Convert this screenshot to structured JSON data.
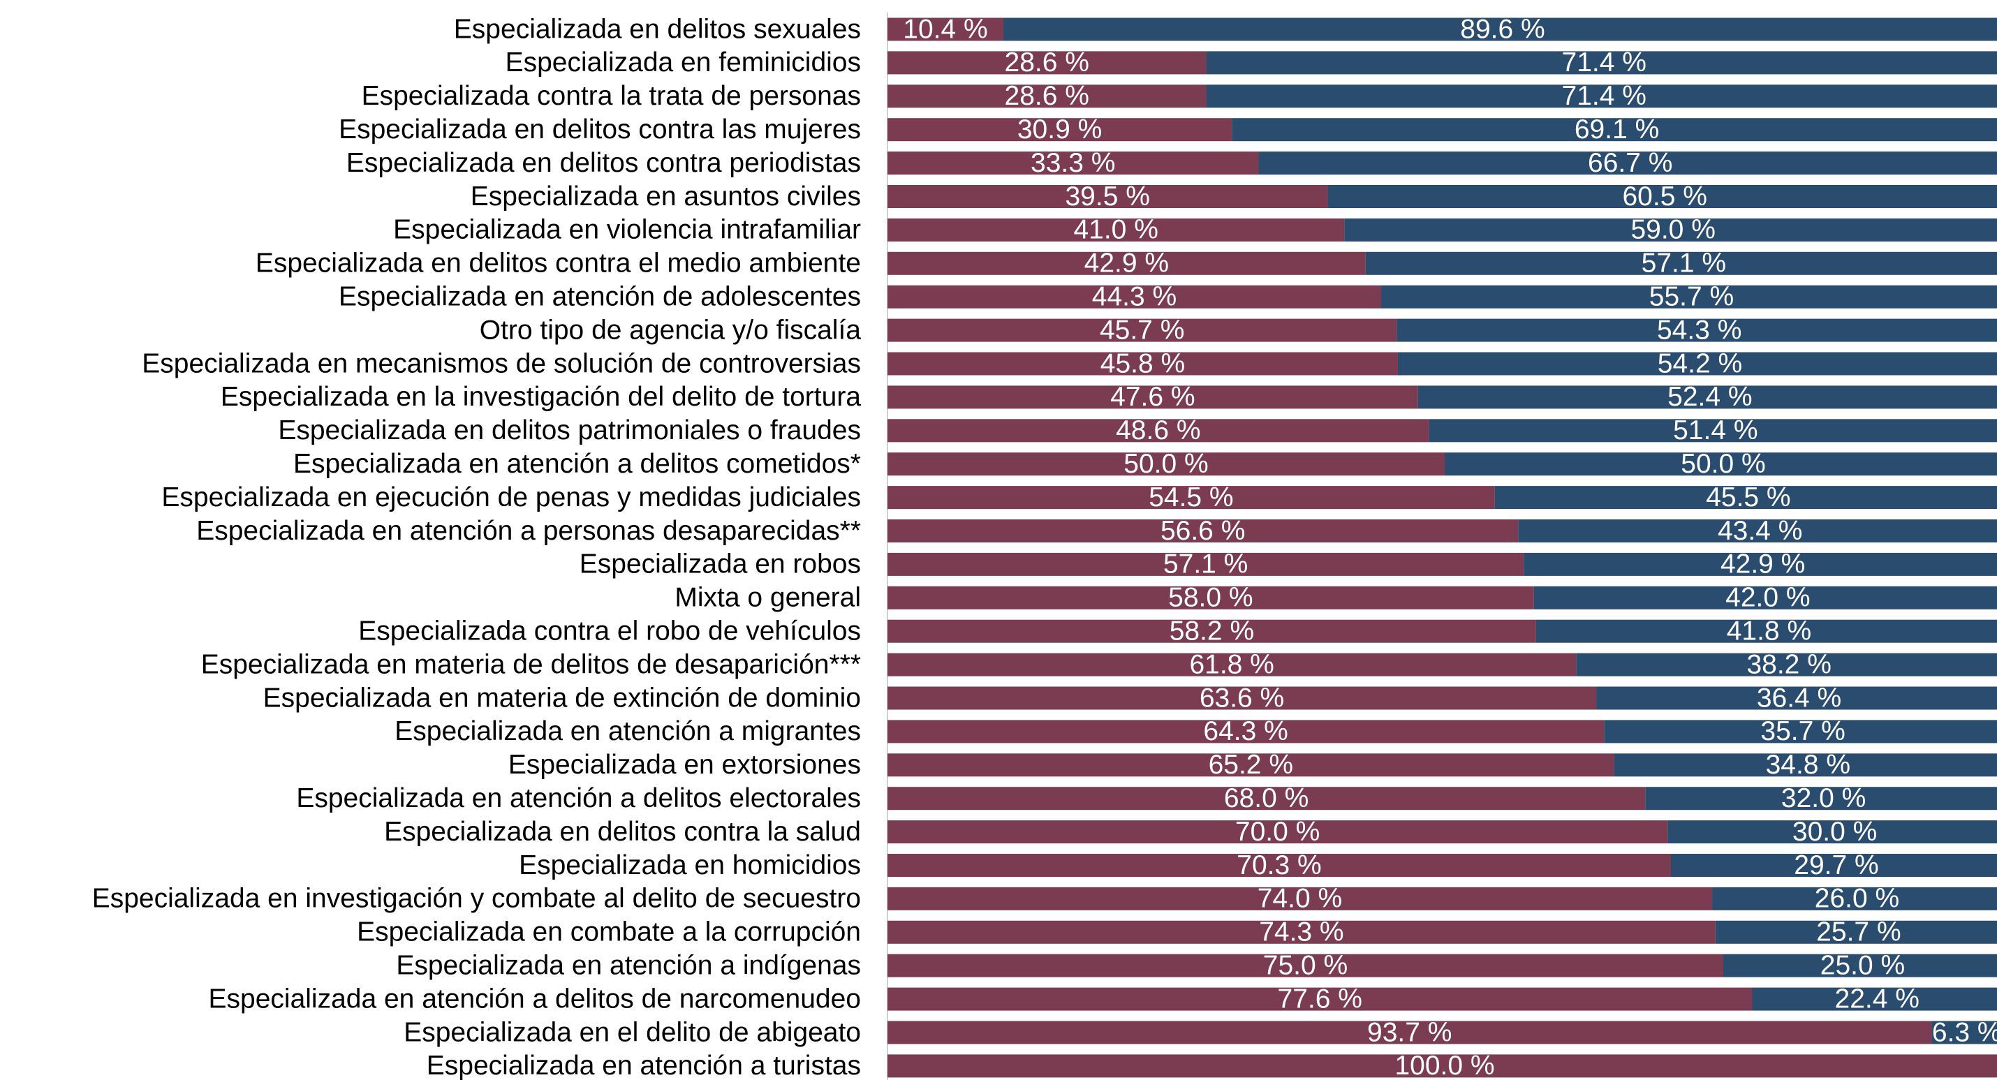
{
  "chart_data": {
    "type": "stacked-bar-horizontal",
    "categories": [
      "Especializada en delitos sexuales",
      "Especializada en feminicidios",
      "Especializada contra la trata de personas",
      "Especializada en delitos contra las mujeres",
      "Especializada en delitos contra periodistas",
      "Especializada en asuntos civiles",
      "Especializada en violencia intrafamiliar",
      "Especializada en delitos contra el medio ambiente",
      "Especializada en atención de adolescentes",
      "Otro tipo de agencia y/o fiscalía",
      "Especializada en mecanismos de solución de controversias",
      "Especializada en la investigación del delito de tortura",
      "Especializada en delitos patrimoniales o fraudes",
      "Especializada en atención a delitos cometidos*",
      "Especializada en ejecución de penas y medidas judiciales",
      "Especializada en atención a personas desaparecidas**",
      "Especializada en robos",
      "Mixta o general",
      "Especializada contra el robo de vehículos",
      "Especializada en materia de delitos de desaparición***",
      "Especializada en materia de extinción de dominio",
      "Especializada en atención a migrantes",
      "Especializada en extorsiones",
      "Especializada en atención a delitos electorales",
      "Especializada en delitos contra la salud",
      "Especializada en homicidios",
      "Especializada en investigación y combate al delito de secuestro",
      "Especializada en combate a la corrupción",
      "Especializada en atención a indígenas",
      "Especializada en atención a delitos de narcomenudeo",
      "Especializada en el delito de abigeato",
      "Especializada en atención a turistas"
    ],
    "series": [
      {
        "color": "#7b3b50",
        "values": [
          10.4,
          28.6,
          28.6,
          30.9,
          33.3,
          39.5,
          41.0,
          42.9,
          44.3,
          45.7,
          45.8,
          47.6,
          48.6,
          50.0,
          54.5,
          56.6,
          57.1,
          58.0,
          58.2,
          61.8,
          63.6,
          64.3,
          65.2,
          68.0,
          70.0,
          70.3,
          74.0,
          74.3,
          75.0,
          77.6,
          93.7,
          100.0
        ],
        "value_labels": [
          "10.4 %",
          "28.6 %",
          "28.6 %",
          "30.9 %",
          "33.3 %",
          "39.5 %",
          "41.0 %",
          "42.9 %",
          "44.3 %",
          "45.7 %",
          "45.8 %",
          "47.6 %",
          "48.6 %",
          "50.0 %",
          "54.5 %",
          "56.6 %",
          "57.1 %",
          "58.0 %",
          "58.2 %",
          "61.8 %",
          "63.6 %",
          "64.3 %",
          "65.2 %",
          "68.0 %",
          "70.0 %",
          "70.3 %",
          "74.0 %",
          "74.3 %",
          "75.0 %",
          "77.6 %",
          "93.7 %",
          "100.0 %"
        ]
      },
      {
        "color": "#2a4c6f",
        "values": [
          89.6,
          71.4,
          71.4,
          69.1,
          66.7,
          60.5,
          59.0,
          57.1,
          55.7,
          54.3,
          54.2,
          52.4,
          51.4,
          50.0,
          45.5,
          43.4,
          42.9,
          42.0,
          41.8,
          38.2,
          36.4,
          35.7,
          34.8,
          32.0,
          30.0,
          29.7,
          26.0,
          25.7,
          25.0,
          22.4,
          6.3,
          null
        ],
        "value_labels": [
          "89.6 %",
          "71.4 %",
          "71.4 %",
          "69.1 %",
          "66.7 %",
          "60.5 %",
          "59.0 %",
          "57.1 %",
          "55.7 %",
          "54.3 %",
          "54.2 %",
          "52.4 %",
          "51.4 %",
          "50.0 %",
          "45.5 %",
          "43.4 %",
          "42.9 %",
          "42.0 %",
          "41.8 %",
          "38.2 %",
          "36.4 %",
          "35.7 %",
          "34.8 %",
          "32.0 %",
          "30.0 %",
          "29.7 %",
          "26.0 %",
          "25.7 %",
          "25.0 %",
          "22.4 %",
          "6.3 %",
          null
        ]
      }
    ],
    "xlim": [
      0,
      100
    ]
  }
}
